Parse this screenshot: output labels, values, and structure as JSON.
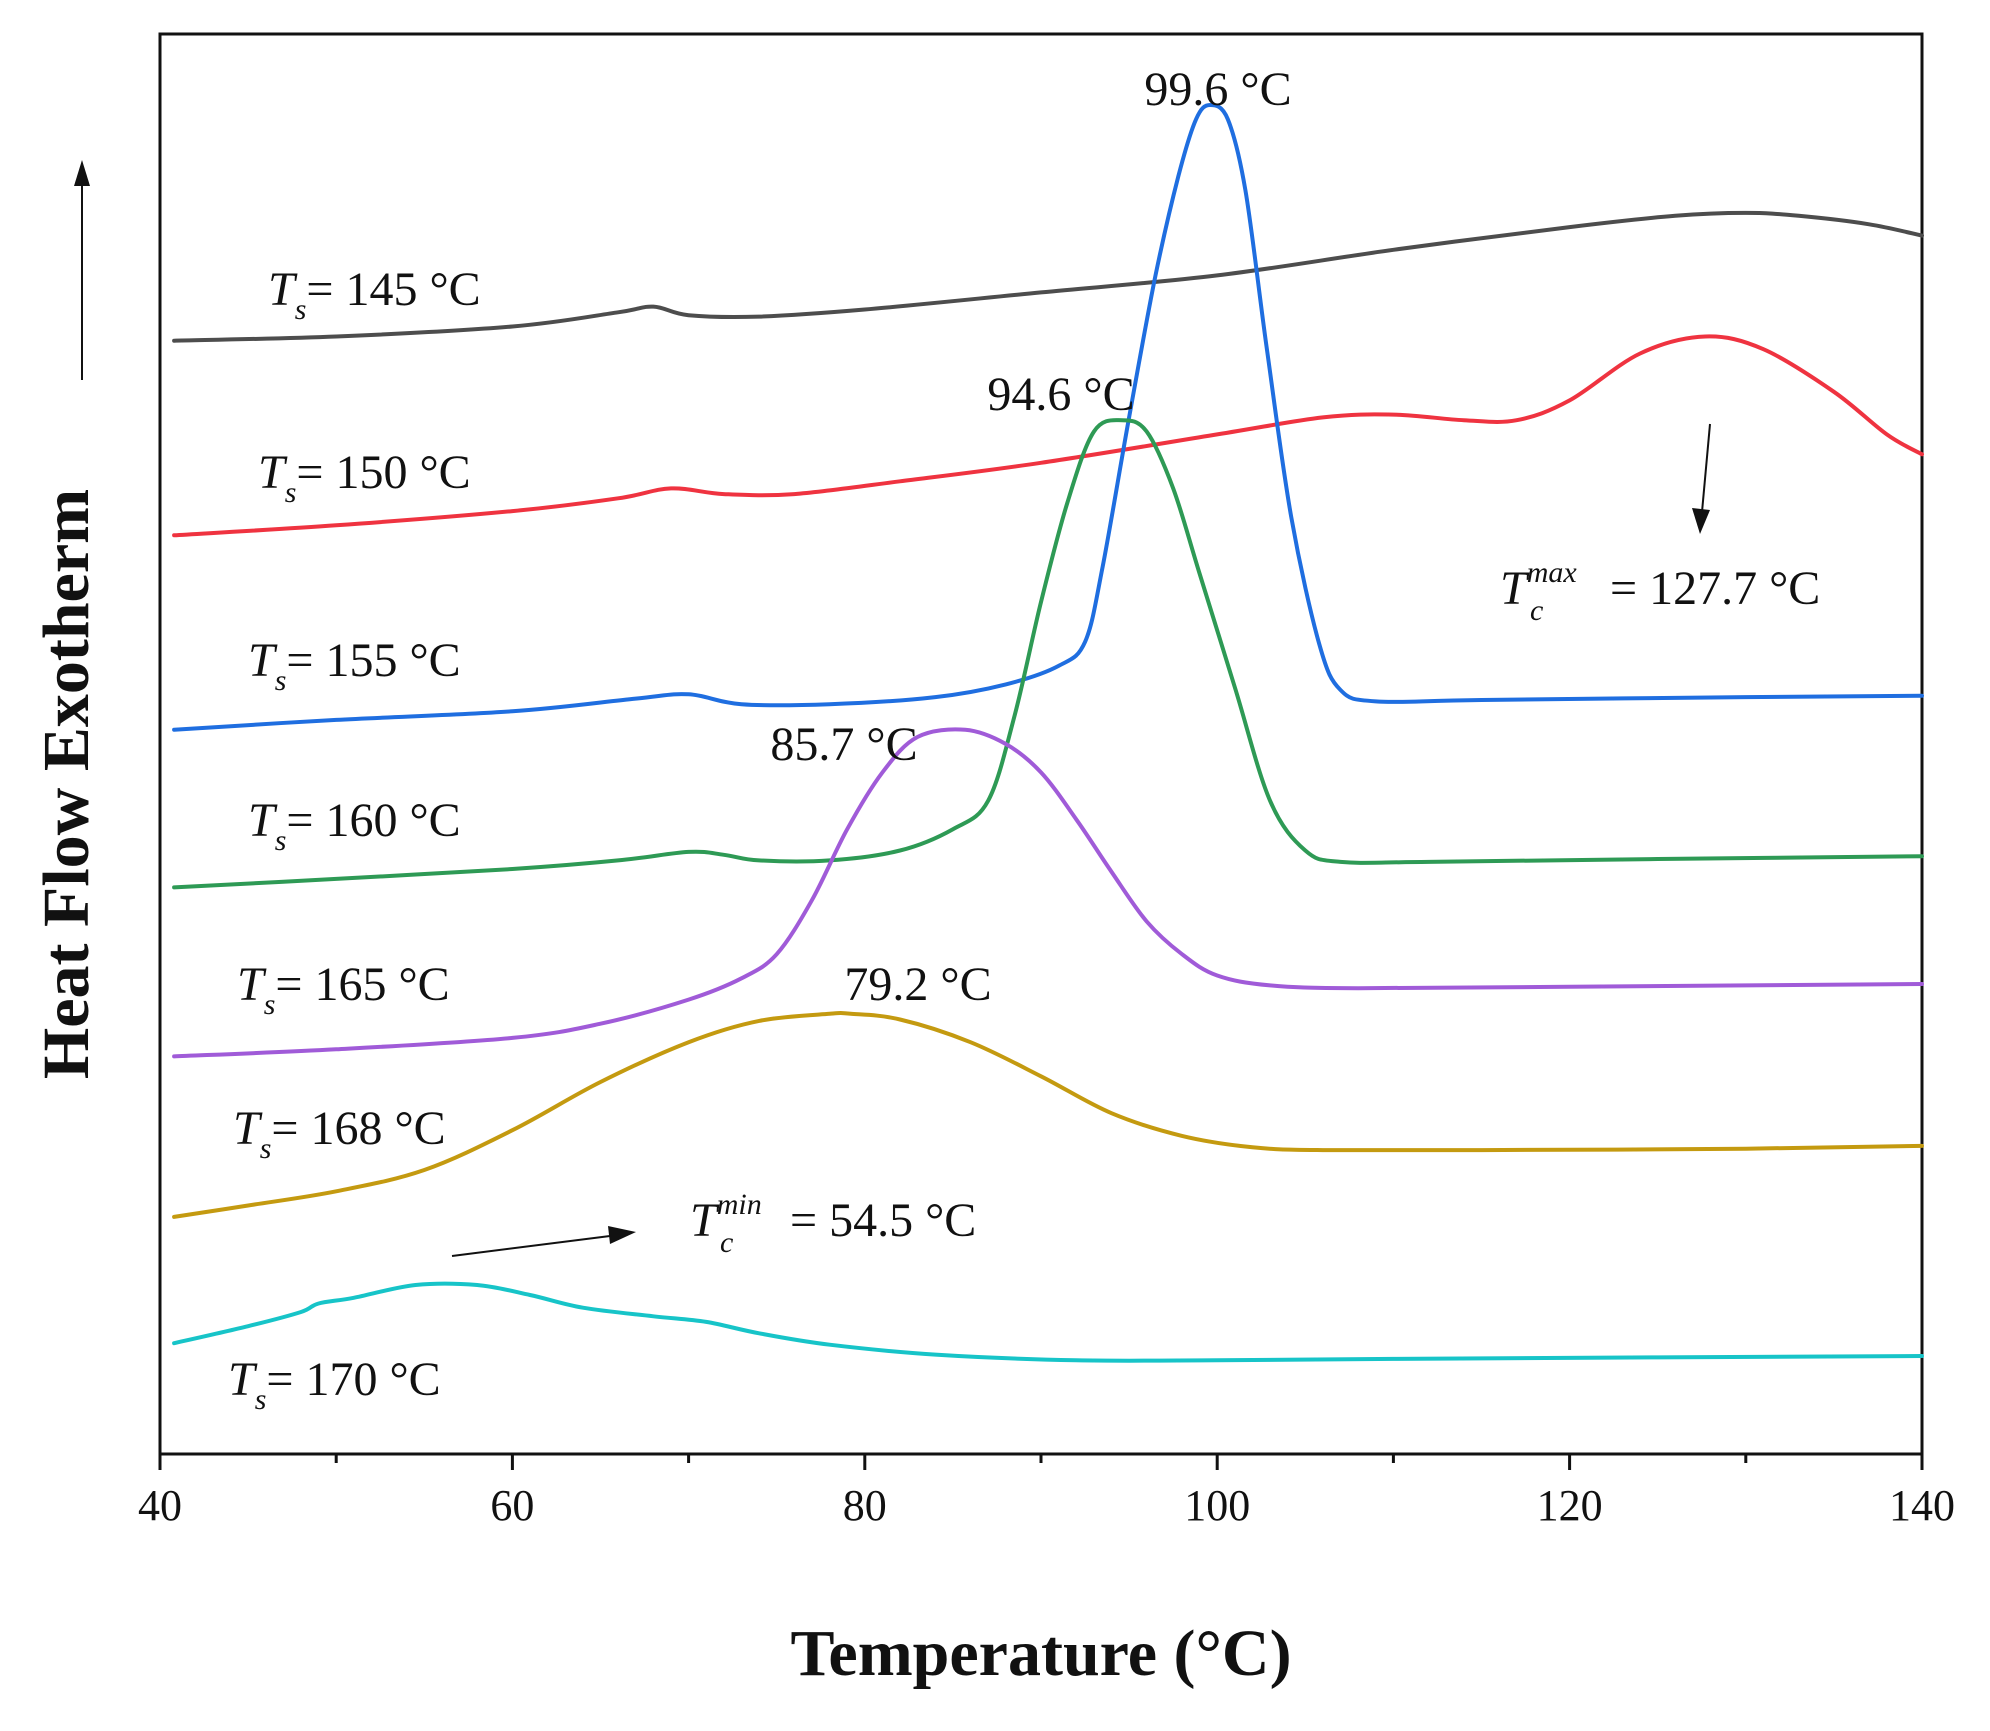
{
  "chart_data": {
    "type": "line",
    "title": "",
    "xlabel": "Temperature (°C)",
    "ylabel": "Heat Flow Exotherm",
    "xlim": [
      40,
      140
    ],
    "ylim": [
      0,
      1
    ],
    "x_ticks": [
      40,
      60,
      80,
      100,
      120,
      140
    ],
    "x_tick_labels": [
      "40",
      "60",
      "80",
      "100",
      "120",
      "140"
    ],
    "y_ticks_shown": false,
    "grid": false,
    "legend": "inline-left",
    "series": [
      {
        "name": "Ts= 145 °C",
        "label_prefix": "T",
        "label_sub": "s",
        "label_suffix": "= 145 °C",
        "color": "#4d4d4d",
        "points": [
          [
            40.8,
            0.784
          ],
          [
            50,
            0.787
          ],
          [
            60,
            0.794
          ],
          [
            66,
            0.804
          ],
          [
            68,
            0.808
          ],
          [
            70,
            0.802
          ],
          [
            74,
            0.801
          ],
          [
            80,
            0.806
          ],
          [
            90,
            0.818
          ],
          [
            100,
            0.83
          ],
          [
            110,
            0.848
          ],
          [
            120,
            0.864
          ],
          [
            126,
            0.872
          ],
          [
            130,
            0.874
          ],
          [
            133,
            0.872
          ],
          [
            137,
            0.866
          ],
          [
            140,
            0.858
          ]
        ]
      },
      {
        "name": "Ts= 150 °C",
        "label_prefix": "T",
        "label_sub": "s",
        "label_suffix": "= 150 °C",
        "color": "#ef3340",
        "points": [
          [
            40.8,
            0.647
          ],
          [
            50,
            0.654
          ],
          [
            60,
            0.664
          ],
          [
            66,
            0.673
          ],
          [
            69,
            0.68
          ],
          [
            72,
            0.676
          ],
          [
            76,
            0.676
          ],
          [
            82,
            0.685
          ],
          [
            90,
            0.698
          ],
          [
            100,
            0.718
          ],
          [
            106,
            0.73
          ],
          [
            110,
            0.732
          ],
          [
            114,
            0.728
          ],
          [
            117,
            0.728
          ],
          [
            120,
            0.742
          ],
          [
            124,
            0.775
          ],
          [
            127.7,
            0.787
          ],
          [
            131,
            0.778
          ],
          [
            135,
            0.748
          ],
          [
            138,
            0.718
          ],
          [
            140,
            0.704
          ]
        ]
      },
      {
        "name": "Ts= 155 °C",
        "label_prefix": "T",
        "label_sub": "s",
        "label_suffix": "= 155 °C",
        "color": "#1f6ee0",
        "points": [
          [
            40.8,
            0.51
          ],
          [
            50,
            0.517
          ],
          [
            60,
            0.523
          ],
          [
            67,
            0.532
          ],
          [
            70,
            0.535
          ],
          [
            73,
            0.528
          ],
          [
            78,
            0.528
          ],
          [
            84,
            0.533
          ],
          [
            88,
            0.542
          ],
          [
            91,
            0.555
          ],
          [
            92.5,
            0.572
          ],
          [
            93.5,
            0.625
          ],
          [
            95,
            0.73
          ],
          [
            96.5,
            0.83
          ],
          [
            97.8,
            0.9
          ],
          [
            98.8,
            0.94
          ],
          [
            99.6,
            0.95
          ],
          [
            100.6,
            0.94
          ],
          [
            101.6,
            0.89
          ],
          [
            102.8,
            0.78
          ],
          [
            104.2,
            0.66
          ],
          [
            105.8,
            0.57
          ],
          [
            107,
            0.538
          ],
          [
            109,
            0.53
          ],
          [
            115,
            0.531
          ],
          [
            130,
            0.533
          ],
          [
            140,
            0.534
          ]
        ]
      },
      {
        "name": "Ts= 160 °C",
        "label_prefix": "T",
        "label_sub": "s",
        "label_suffix": "= 160 °C",
        "color": "#2e9a55",
        "points": [
          [
            40.8,
            0.399
          ],
          [
            50,
            0.405
          ],
          [
            60,
            0.412
          ],
          [
            66,
            0.418
          ],
          [
            70,
            0.424
          ],
          [
            72,
            0.422
          ],
          [
            74,
            0.418
          ],
          [
            78,
            0.418
          ],
          [
            82,
            0.425
          ],
          [
            85,
            0.44
          ],
          [
            87,
            0.46
          ],
          [
            88.5,
            0.52
          ],
          [
            90,
            0.6
          ],
          [
            91.5,
            0.67
          ],
          [
            93,
            0.72
          ],
          [
            94.6,
            0.728
          ],
          [
            96,
            0.72
          ],
          [
            97.5,
            0.68
          ],
          [
            99,
            0.62
          ],
          [
            101,
            0.54
          ],
          [
            103,
            0.46
          ],
          [
            105,
            0.425
          ],
          [
            107,
            0.417
          ],
          [
            112,
            0.417
          ],
          [
            125,
            0.419
          ],
          [
            140,
            0.421
          ]
        ]
      },
      {
        "name": "Ts= 165 °C",
        "label_prefix": "T",
        "label_sub": "s",
        "label_suffix": "= 165 °C",
        "color": "#a05bd8",
        "points": [
          [
            40.8,
            0.28
          ],
          [
            50,
            0.285
          ],
          [
            60,
            0.293
          ],
          [
            65,
            0.303
          ],
          [
            70,
            0.32
          ],
          [
            73,
            0.335
          ],
          [
            75,
            0.352
          ],
          [
            77,
            0.39
          ],
          [
            79,
            0.44
          ],
          [
            81,
            0.48
          ],
          [
            83,
            0.505
          ],
          [
            85.7,
            0.51
          ],
          [
            88,
            0.5
          ],
          [
            90,
            0.48
          ],
          [
            92,
            0.447
          ],
          [
            94,
            0.41
          ],
          [
            96,
            0.375
          ],
          [
            98,
            0.352
          ],
          [
            100,
            0.337
          ],
          [
            103,
            0.33
          ],
          [
            108,
            0.328
          ],
          [
            120,
            0.329
          ],
          [
            140,
            0.331
          ]
        ]
      },
      {
        "name": "Ts= 168 °C",
        "label_prefix": "T",
        "label_sub": "s",
        "label_suffix": "= 168 °C",
        "color": "#c49a10",
        "points": [
          [
            40.8,
            0.167
          ],
          [
            45,
            0.175
          ],
          [
            50,
            0.185
          ],
          [
            55,
            0.2
          ],
          [
            60,
            0.228
          ],
          [
            65,
            0.262
          ],
          [
            70,
            0.29
          ],
          [
            74,
            0.305
          ],
          [
            78,
            0.31
          ],
          [
            79.2,
            0.31
          ],
          [
            82,
            0.306
          ],
          [
            86,
            0.29
          ],
          [
            90,
            0.266
          ],
          [
            94,
            0.24
          ],
          [
            98,
            0.224
          ],
          [
            102,
            0.216
          ],
          [
            106,
            0.214
          ],
          [
            115,
            0.214
          ],
          [
            130,
            0.215
          ],
          [
            140,
            0.217
          ]
        ]
      },
      {
        "name": "Ts= 170 °C",
        "label_prefix": "T",
        "label_sub": "s",
        "label_suffix": "= 170 °C",
        "color": "#17c4c8",
        "points": [
          [
            40.8,
            0.078
          ],
          [
            45,
            0.09
          ],
          [
            48,
            0.1
          ],
          [
            49,
            0.106
          ],
          [
            51,
            0.11
          ],
          [
            54.5,
            0.119
          ],
          [
            58,
            0.119
          ],
          [
            61,
            0.112
          ],
          [
            64,
            0.103
          ],
          [
            68,
            0.097
          ],
          [
            71,
            0.093
          ],
          [
            74,
            0.085
          ],
          [
            78,
            0.077
          ],
          [
            84,
            0.07
          ],
          [
            92,
            0.066
          ],
          [
            100,
            0.066
          ],
          [
            110,
            0.067
          ],
          [
            125,
            0.068
          ],
          [
            140,
            0.069
          ]
        ]
      }
    ],
    "annotations": {
      "peak_155": "99.6 °C",
      "peak_160": "94.6 °C",
      "peak_165": "85.7 °C",
      "peak_168": "79.2 °C",
      "tc_max_base": "T",
      "tc_max_sub": "c",
      "tc_max_sup": "max",
      "tc_max_value": "= 127.7 °C",
      "tc_min_base": "T",
      "tc_min_sub": "c",
      "tc_min_sup": "min",
      "tc_min_value": "= 54.5 °C"
    }
  }
}
